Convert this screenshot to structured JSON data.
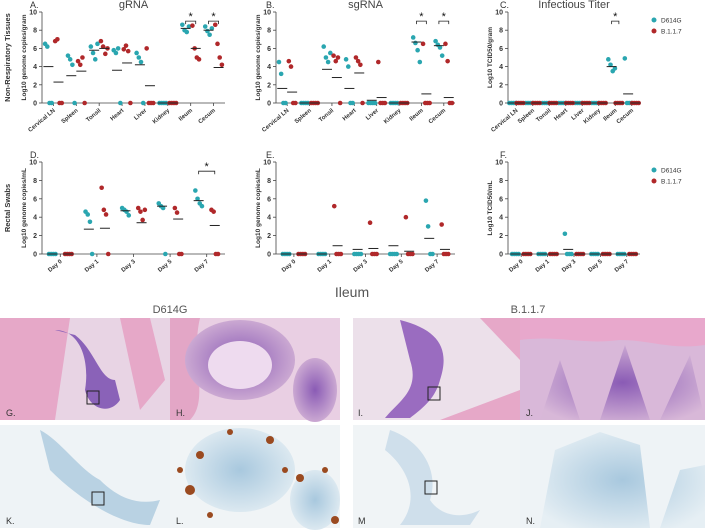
{
  "chart_data": [
    {
      "type": "strip",
      "panel": "A.",
      "title": "gRNA",
      "row_label": "Non-Respiratory Tissues",
      "ylabel": "Log10 genome copies/gram",
      "categories": [
        "Cervical LN",
        "Spleen",
        "Tonsil",
        "Heart",
        "Liver",
        "Kidney",
        "Ileum",
        "Cecum"
      ],
      "ylim": [
        0,
        10
      ],
      "yticks": [
        0,
        2,
        4,
        6,
        8,
        10
      ],
      "series": [
        {
          "name": "D614G",
          "color": "#2aa6b0",
          "values": [
            [
              6.5,
              6.2,
              0,
              0
            ],
            [
              5.2,
              4.8,
              4.2,
              0
            ],
            [
              6.2,
              5.5,
              4.8,
              6.5
            ],
            [
              5.8,
              5.5,
              6.0,
              0
            ],
            [
              5.5,
              5.0,
              4.5,
              0
            ],
            [
              0,
              0,
              0,
              0
            ],
            [
              8.6,
              8.0,
              7.8,
              8.4
            ],
            [
              8.4,
              7.9,
              7.5,
              8.2
            ]
          ],
          "means": [
            4.0,
            3.0,
            5.8,
            3.6,
            4.2,
            0,
            8.2,
            8.0
          ]
        },
        {
          "name": "B.1.1.7",
          "color": "#b0282a",
          "values": [
            [
              6.8,
              7.0,
              0,
              0
            ],
            [
              4.6,
              4.2,
              5.0,
              0
            ],
            [
              6.8,
              6.2,
              5.4,
              6.0
            ],
            [
              5.9,
              6.3,
              5.7,
              0
            ],
            [
              6.0,
              0,
              0,
              0
            ],
            [
              0,
              0,
              0,
              0
            ],
            [
              8.5,
              6.0,
              5.0,
              4.8
            ],
            [
              8.6,
              6.5,
              5.0,
              4.2
            ]
          ],
          "means": [
            2.3,
            3.5,
            6.0,
            4.4,
            1.9,
            0,
            6.0,
            3.9
          ]
        }
      ],
      "annotations": [
        {
          "text": "*",
          "category": 6
        },
        {
          "text": "*",
          "category": 7
        }
      ],
      "legend": false
    },
    {
      "type": "strip",
      "panel": "B.",
      "title": "sgRNA",
      "ylabel": "Log10 genome copies/gram",
      "categories": [
        "Cervical LN",
        "Spleen",
        "Tonsil",
        "Heart",
        "Liver",
        "Kidney",
        "Ileum",
        "Cecum"
      ],
      "ylim": [
        0,
        10
      ],
      "yticks": [
        0,
        2,
        4,
        6,
        8,
        10
      ],
      "series": [
        {
          "name": "D614G",
          "color": "#2aa6b0",
          "values": [
            [
              4.5,
              3.2,
              0,
              0
            ],
            [
              0,
              0,
              0,
              0
            ],
            [
              6.2,
              5.0,
              4.5,
              5.5
            ],
            [
              4.8,
              4.0,
              0,
              0
            ],
            [
              0,
              0,
              0,
              0
            ],
            [
              0,
              0,
              0,
              0
            ],
            [
              7.2,
              6.6,
              5.8,
              4.5
            ],
            [
              6.8,
              6.4,
              6.1,
              5.2
            ]
          ],
          "means": [
            1.6,
            0,
            3.7,
            1.6,
            0.3,
            0,
            6.7,
            6.3
          ]
        },
        {
          "name": "B.1.1.7",
          "color": "#b0282a",
          "values": [
            [
              4.6,
              4.0,
              0,
              0
            ],
            [
              0,
              0,
              0,
              0
            ],
            [
              5.2,
              4.6,
              5.0,
              0
            ],
            [
              5.0,
              4.6,
              4.2,
              0
            ],
            [
              4.5,
              0,
              0,
              0
            ],
            [
              0,
              0,
              0,
              0
            ],
            [
              6.5,
              0,
              0,
              0
            ],
            [
              6.5,
              4.6,
              0,
              0
            ]
          ],
          "means": [
            1.2,
            0,
            2.8,
            3.3,
            0.6,
            0,
            1.0,
            0.6
          ]
        }
      ],
      "annotations": [
        {
          "text": "*",
          "category": 6
        },
        {
          "text": "*",
          "category": 7
        }
      ],
      "legend": false
    },
    {
      "type": "strip",
      "panel": "C.",
      "title": "Infectious Titer",
      "ylabel": "Log10 TCID50/gram",
      "categories": [
        "Cervical LN",
        "Spleen",
        "Tonsil",
        "Heart",
        "Liver",
        "Kidney",
        "Ileum",
        "Cecum"
      ],
      "ylim": [
        0,
        10
      ],
      "yticks": [
        0,
        2,
        4,
        6,
        8,
        10
      ],
      "series": [
        {
          "name": "D614G",
          "color": "#2aa6b0",
          "values": [
            [
              0,
              0,
              0,
              0
            ],
            [
              0,
              0,
              0,
              0
            ],
            [
              0,
              0,
              0,
              0
            ],
            [
              0,
              0,
              0,
              0
            ],
            [
              0,
              0,
              0,
              0
            ],
            [
              0,
              0,
              0,
              0
            ],
            [
              4.8,
              4.2,
              3.5,
              3.8
            ],
            [
              4.9,
              0,
              0,
              0
            ]
          ],
          "means": [
            0,
            0,
            0,
            0,
            0,
            0,
            4.0,
            1.0
          ]
        },
        {
          "name": "B.1.1.7",
          "color": "#b0282a",
          "values": [
            [
              0,
              0,
              0,
              0
            ],
            [
              0,
              0,
              0,
              0
            ],
            [
              0,
              0,
              0,
              0
            ],
            [
              0,
              0,
              0,
              0
            ],
            [
              0,
              0,
              0,
              0
            ],
            [
              0,
              0,
              0,
              0
            ],
            [
              0,
              0,
              0,
              0
            ],
            [
              0,
              0,
              0,
              0
            ]
          ],
          "means": [
            0,
            0,
            0,
            0,
            0,
            0,
            0,
            0
          ]
        }
      ],
      "annotations": [
        {
          "text": "*",
          "category": 6
        }
      ],
      "legend": true
    },
    {
      "type": "strip",
      "panel": "D.",
      "row_label": "Rectal  Swabs",
      "ylabel": "Log10 genome copies/mL",
      "categories": [
        "Day 0",
        "Day 1",
        "Day 3",
        "Day 5",
        "Day 7"
      ],
      "ylim": [
        0,
        10
      ],
      "yticks": [
        0,
        2,
        4,
        6,
        8,
        10
      ],
      "series": [
        {
          "name": "D614G",
          "color": "#2aa6b0",
          "values": [
            [
              0,
              0,
              0,
              0
            ],
            [
              4.6,
              4.3,
              3.5,
              0
            ],
            [
              5.0,
              4.8,
              4.6,
              4.2
            ],
            [
              5.5,
              5.2,
              5.0,
              0
            ],
            [
              6.9,
              6.0,
              5.5,
              5.2
            ]
          ],
          "means": [
            0,
            2.7,
            4.7,
            5.2,
            5.8
          ]
        },
        {
          "name": "B.1.1.7",
          "color": "#b0282a",
          "values": [
            [
              0,
              0,
              0,
              0
            ],
            [
              7.2,
              4.8,
              4.3,
              0
            ],
            [
              5.0,
              4.6,
              3.7,
              4.8
            ],
            [
              5.0,
              4.5,
              0,
              0
            ],
            [
              4.8,
              4.6,
              0,
              0
            ]
          ],
          "means": [
            0,
            2.8,
            3.4,
            3.8,
            3.1
          ]
        }
      ],
      "annotations": [
        {
          "text": "*",
          "category": 4
        }
      ],
      "legend": false
    },
    {
      "type": "strip",
      "panel": "E.",
      "ylabel": "Log10 genome copies/mL",
      "categories": [
        "Day 0",
        "Day 1",
        "Day 3",
        "Day 5",
        "Day 7"
      ],
      "ylim": [
        0,
        10
      ],
      "yticks": [
        0,
        2,
        4,
        6,
        8,
        10
      ],
      "series": [
        {
          "name": "D614G",
          "color": "#2aa6b0",
          "values": [
            [
              0,
              0,
              0,
              0
            ],
            [
              0,
              0,
              0,
              0
            ],
            [
              0,
              0,
              0,
              0
            ],
            [
              0,
              0,
              0,
              0
            ],
            [
              5.8,
              3.0,
              0,
              0
            ]
          ],
          "means": [
            0,
            0,
            0.5,
            0.9,
            1.7
          ]
        },
        {
          "name": "B.1.1.7",
          "color": "#b0282a",
          "values": [
            [
              0,
              0,
              0,
              0
            ],
            [
              5.2,
              0,
              0,
              0
            ],
            [
              3.4,
              0,
              0,
              0
            ],
            [
              4.0,
              0,
              0,
              0
            ],
            [
              3.2,
              0,
              0,
              0
            ]
          ],
          "means": [
            0,
            0.9,
            0.6,
            0.3,
            0.5
          ]
        }
      ],
      "annotations": [],
      "legend": false
    },
    {
      "type": "strip",
      "panel": "F.",
      "ylabel": "Log10 TCID50/mL",
      "categories": [
        "Day 0",
        "Day 1",
        "Day 3",
        "Day 5",
        "Day 7"
      ],
      "ylim": [
        0,
        10
      ],
      "yticks": [
        0,
        2,
        4,
        6,
        8,
        10
      ],
      "series": [
        {
          "name": "D614G",
          "color": "#2aa6b0",
          "values": [
            [
              0,
              0,
              0,
              0
            ],
            [
              0,
              0,
              0,
              0
            ],
            [
              2.2,
              0,
              0,
              0
            ],
            [
              0,
              0,
              0,
              0
            ],
            [
              0,
              0,
              0,
              0
            ]
          ],
          "means": [
            0,
            0,
            0.5,
            0,
            0
          ]
        },
        {
          "name": "B.1.1.7",
          "color": "#b0282a",
          "values": [
            [
              0,
              0,
              0,
              0
            ],
            [
              0,
              0,
              0,
              0
            ],
            [
              0,
              0,
              0,
              0
            ],
            [
              0,
              0,
              0,
              0
            ],
            [
              0,
              0,
              0,
              0
            ]
          ],
          "means": [
            0,
            0,
            0,
            0,
            0
          ]
        }
      ],
      "annotations": [],
      "legend": true
    }
  ],
  "images": {
    "title": "Ileum",
    "groups": [
      "D614G",
      "B.1.1.7"
    ],
    "labels": [
      "G.",
      "H.",
      "I.",
      "J.",
      "K.",
      "L.",
      "M",
      "N."
    ]
  }
}
